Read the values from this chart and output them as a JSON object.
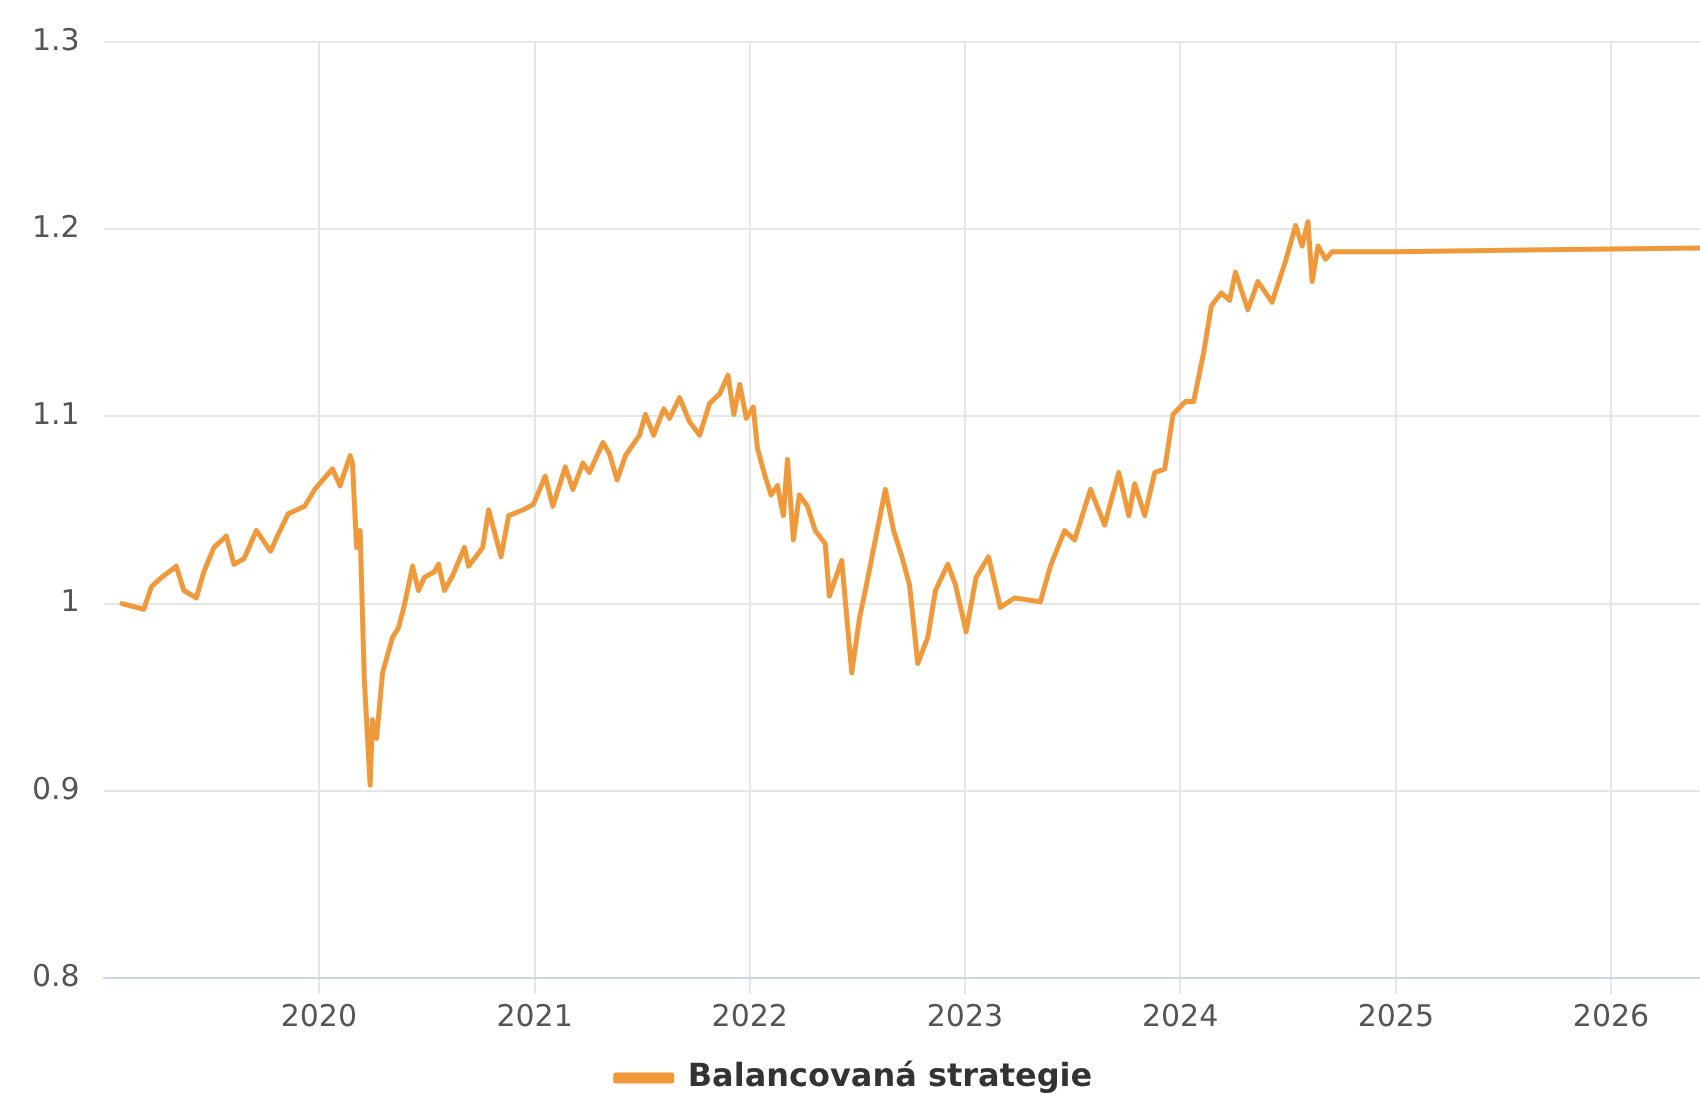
{
  "chart_data": {
    "type": "line",
    "xlim": [
      "2019-01-01",
      "2026-06-01"
    ],
    "xticks": [
      "2020",
      "2021",
      "2022",
      "2023",
      "2024",
      "2025",
      "2026"
    ],
    "ylim": [
      0.8,
      1.3
    ],
    "yticks": [
      0.8,
      0.9,
      1,
      1.1,
      1.2,
      1.3
    ],
    "grid": true,
    "legend": "bottom",
    "marker": "none",
    "line_style": "solid",
    "x": [
      "2019-02-01",
      "2019-03-10",
      "2019-03-23",
      "2019-04-09",
      "2019-05-04",
      "2019-05-17",
      "2019-06-07",
      "2019-06-20",
      "2019-07-07",
      "2019-07-28",
      "2019-08-10",
      "2019-08-27",
      "2019-09-17",
      "2019-10-11",
      "2019-10-24",
      "2019-11-10",
      "2019-12-08",
      "2019-12-25",
      "2020-01-24",
      "2020-02-06",
      "2020-02-23",
      "2020-02-27",
      "2020-03-05",
      "2020-03-11",
      "2020-03-18",
      "2020-03-28",
      "2020-04-01",
      "2020-04-08",
      "2020-04-18",
      "2020-05-05",
      "2020-05-15",
      "2020-05-25",
      "2020-06-08",
      "2020-06-18",
      "2020-06-28",
      "2020-07-15",
      "2020-07-22",
      "2020-08-01",
      "2020-08-15",
      "2020-09-04",
      "2020-09-11",
      "2020-10-05",
      "2020-10-15",
      "2020-11-05",
      "2020-11-18",
      "2020-12-12",
      "2020-12-30",
      "2021-01-19",
      "2021-02-01",
      "2021-02-22",
      "2021-03-07",
      "2021-03-24",
      "2021-04-04",
      "2021-04-27",
      "2021-05-08",
      "2021-05-21",
      "2021-06-04",
      "2021-06-28",
      "2021-07-08",
      "2021-07-22",
      "2021-08-08",
      "2021-08-18",
      "2021-09-04",
      "2021-09-21",
      "2021-10-08",
      "2021-10-25",
      "2021-11-11",
      "2021-11-25",
      "2021-12-05",
      "2021-12-15",
      "2021-12-26",
      "2022-01-07",
      "2022-01-14",
      "2022-01-27",
      "2022-02-06",
      "2022-02-17",
      "2022-02-27",
      "2022-03-06",
      "2022-03-16",
      "2022-03-26",
      "2022-04-09",
      "2022-04-22",
      "2022-05-09",
      "2022-05-16",
      "2022-06-06",
      "2022-06-23",
      "2022-07-06",
      "2022-07-16",
      "2022-08-02",
      "2022-08-19",
      "2022-09-02",
      "2022-09-16",
      "2022-09-29",
      "2022-10-13",
      "2022-10-30",
      "2022-11-12",
      "2022-12-03",
      "2022-12-16",
      "2023-01-03",
      "2023-01-20",
      "2023-02-10",
      "2023-03-02",
      "2023-03-26",
      "2023-05-09",
      "2023-05-26",
      "2023-06-19",
      "2023-07-06",
      "2023-08-02",
      "2023-08-26",
      "2023-09-19",
      "2023-10-06",
      "2023-10-16",
      "2023-11-02",
      "2023-11-19",
      "2023-12-06",
      "2023-12-20",
      "2024-01-10",
      "2024-01-24",
      "2024-02-10",
      "2024-02-23",
      "2024-03-11",
      "2024-03-25",
      "2024-04-04",
      "2024-04-25",
      "2024-05-12",
      "2024-06-05",
      "2024-06-28",
      "2024-07-15",
      "2024-07-26",
      "2024-08-05",
      "2024-08-12",
      "2024-08-22",
      "2024-09-04",
      "2024-09-15",
      "2025-01-01",
      "2026-06-01"
    ],
    "series": [
      {
        "name": "Balancovaná strategie",
        "color": "#f0993b",
        "values": [
          1.0,
          0.997,
          1.009,
          1.014,
          1.02,
          1.007,
          1.003,
          1.017,
          1.03,
          1.036,
          1.021,
          1.024,
          1.039,
          1.028,
          1.037,
          1.048,
          1.052,
          1.061,
          1.072,
          1.063,
          1.079,
          1.075,
          1.03,
          1.039,
          0.96,
          0.903,
          0.938,
          0.928,
          0.963,
          0.982,
          0.987,
          0.999,
          1.02,
          1.007,
          1.014,
          1.017,
          1.021,
          1.007,
          1.015,
          1.03,
          1.02,
          1.03,
          1.05,
          1.025,
          1.047,
          1.05,
          1.053,
          1.068,
          1.052,
          1.073,
          1.061,
          1.075,
          1.07,
          1.086,
          1.08,
          1.066,
          1.079,
          1.09,
          1.101,
          1.09,
          1.104,
          1.099,
          1.11,
          1.097,
          1.09,
          1.107,
          1.112,
          1.122,
          1.101,
          1.117,
          1.099,
          1.105,
          1.083,
          1.068,
          1.058,
          1.063,
          1.047,
          1.077,
          1.034,
          1.058,
          1.052,
          1.039,
          1.032,
          1.004,
          1.023,
          0.963,
          0.992,
          1.007,
          1.034,
          1.061,
          1.039,
          1.025,
          1.01,
          0.968,
          0.982,
          1.007,
          1.021,
          1.01,
          0.985,
          1.014,
          1.025,
          0.998,
          1.003,
          1.001,
          1.02,
          1.039,
          1.034,
          1.061,
          1.042,
          1.07,
          1.047,
          1.064,
          1.047,
          1.07,
          1.072,
          1.101,
          1.108,
          1.108,
          1.134,
          1.159,
          1.166,
          1.162,
          1.177,
          1.157,
          1.172,
          1.161,
          1.183,
          1.202,
          1.191,
          1.204,
          1.172,
          1.191,
          1.184,
          1.188,
          1.188,
          1.19
        ]
      }
    ]
  }
}
